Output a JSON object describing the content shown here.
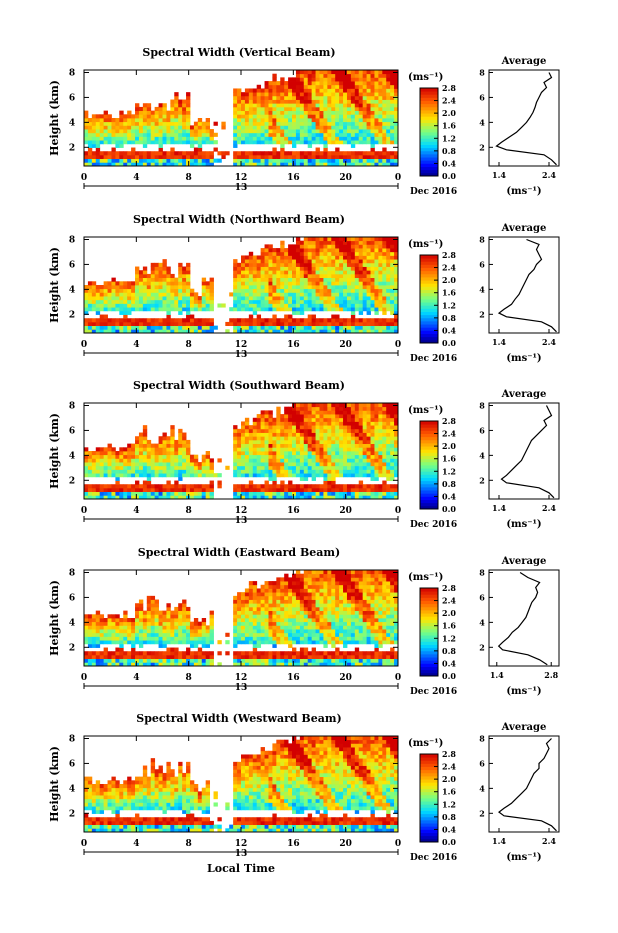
{
  "figure": {
    "xlabel": "Local Time",
    "ylabel": "Height (km)",
    "unit": "(ms⁻¹)",
    "date_label": "Dec 2016",
    "day_label": "13",
    "avg_title": "Average"
  },
  "chart_data": [
    {
      "type": "heatmap",
      "title": "Spectral Width (Vertical Beam)",
      "xlabel": "",
      "ylabel": "Height (km)",
      "x_ticks": [
        "0",
        "4",
        "8",
        "12",
        "16",
        "20",
        "0"
      ],
      "y_ticks": [
        "2",
        "4",
        "6",
        "8"
      ],
      "xlim": [
        0,
        24
      ],
      "ylim": [
        0.5,
        8.2
      ],
      "colorbar_ticks": [
        "0.0",
        "0.4",
        "0.8",
        "1.2",
        "1.6",
        "2.0",
        "2.4",
        "2.8"
      ],
      "colorbar_range": [
        0.0,
        2.8
      ],
      "average_profile": {
        "title": "Average",
        "xlabel": "(ms⁻¹)",
        "x_ticks": [
          "1.4",
          "2.4"
        ],
        "y_ticks": [
          "2",
          "4",
          "6",
          "8"
        ],
        "xlim": [
          1.2,
          2.6
        ],
        "ylim": [
          0.5,
          8.2
        ],
        "heights": [
          0.6,
          1.0,
          1.4,
          1.8,
          2.1,
          2.4,
          2.8,
          3.2,
          3.6,
          4.0,
          4.4,
          4.8,
          5.2,
          5.6,
          6.0,
          6.4,
          6.8,
          7.2,
          7.6,
          8.0
        ],
        "values": [
          2.55,
          2.45,
          2.3,
          1.55,
          1.35,
          1.45,
          1.6,
          1.75,
          1.85,
          1.95,
          2.02,
          2.08,
          2.12,
          2.15,
          2.2,
          2.25,
          2.35,
          2.3,
          2.45,
          2.4
        ]
      }
    },
    {
      "type": "heatmap",
      "title": "Spectral Width (Northward Beam)",
      "xlabel": "",
      "ylabel": "Height (km)",
      "x_ticks": [
        "0",
        "4",
        "8",
        "12",
        "16",
        "20",
        "0"
      ],
      "y_ticks": [
        "2",
        "4",
        "6",
        "8"
      ],
      "xlim": [
        0,
        24
      ],
      "ylim": [
        0.5,
        8.2
      ],
      "colorbar_ticks": [
        "0.0",
        "0.4",
        "0.8",
        "1.2",
        "1.6",
        "2.0",
        "2.4",
        "2.8"
      ],
      "colorbar_range": [
        0.0,
        2.8
      ],
      "average_profile": {
        "title": "Average",
        "xlabel": "(ms⁻¹)",
        "x_ticks": [
          "1.4",
          "2.4"
        ],
        "y_ticks": [
          "2",
          "4",
          "6",
          "8"
        ],
        "xlim": [
          1.2,
          2.6
        ],
        "ylim": [
          0.5,
          8.2
        ],
        "heights": [
          0.6,
          1.0,
          1.4,
          1.8,
          2.1,
          2.4,
          2.8,
          3.2,
          3.6,
          4.0,
          4.4,
          4.8,
          5.2,
          5.6,
          6.0,
          6.4,
          6.8,
          7.2,
          7.6,
          8.0
        ],
        "values": [
          2.55,
          2.45,
          2.25,
          1.55,
          1.4,
          1.5,
          1.65,
          1.72,
          1.8,
          1.85,
          1.9,
          1.95,
          2.0,
          2.1,
          2.15,
          2.25,
          2.2,
          2.15,
          2.2,
          1.95
        ]
      }
    },
    {
      "type": "heatmap",
      "title": "Spectral Width (Southward Beam)",
      "xlabel": "",
      "ylabel": "Height (km)",
      "x_ticks": [
        "0",
        "4",
        "8",
        "12",
        "16",
        "20",
        "0"
      ],
      "y_ticks": [
        "2",
        "4",
        "6",
        "8"
      ],
      "xlim": [
        0,
        24
      ],
      "ylim": [
        0.5,
        8.2
      ],
      "colorbar_ticks": [
        "0.0",
        "0.4",
        "0.8",
        "1.2",
        "1.6",
        "2.0",
        "2.4",
        "2.8"
      ],
      "colorbar_range": [
        0.0,
        2.8
      ],
      "average_profile": {
        "title": "Average",
        "xlabel": "(ms⁻¹)",
        "x_ticks": [
          "1.4",
          "2.4"
        ],
        "y_ticks": [
          "2",
          "4",
          "6",
          "8"
        ],
        "xlim": [
          1.2,
          2.6
        ],
        "ylim": [
          0.5,
          8.2
        ],
        "heights": [
          0.6,
          1.0,
          1.4,
          1.8,
          2.1,
          2.4,
          2.8,
          3.2,
          3.6,
          4.0,
          4.4,
          4.8,
          5.2,
          5.6,
          6.0,
          6.4,
          6.8,
          7.2,
          7.6,
          8.0
        ],
        "values": [
          2.5,
          2.4,
          2.2,
          1.55,
          1.45,
          1.55,
          1.65,
          1.75,
          1.85,
          1.9,
          1.95,
          2.0,
          2.05,
          2.15,
          2.25,
          2.35,
          2.3,
          2.45,
          2.4,
          2.35
        ]
      }
    },
    {
      "type": "heatmap",
      "title": "Spectral Width (Eastward Beam)",
      "xlabel": "",
      "ylabel": "Height (km)",
      "x_ticks": [
        "0",
        "4",
        "8",
        "12",
        "16",
        "20",
        "0"
      ],
      "y_ticks": [
        "2",
        "4",
        "6",
        "8"
      ],
      "xlim": [
        0,
        24
      ],
      "ylim": [
        0.5,
        8.2
      ],
      "colorbar_ticks": [
        "0.0",
        "0.4",
        "0.8",
        "1.2",
        "1.6",
        "2.0",
        "2.4",
        "2.8"
      ],
      "colorbar_range": [
        0.0,
        2.8
      ],
      "average_profile": {
        "title": "Average",
        "xlabel": "(ms⁻¹)",
        "x_ticks": [
          "1.4",
          "2.8"
        ],
        "y_ticks": [
          "2",
          "4",
          "6",
          "8"
        ],
        "xlim": [
          1.2,
          3.0
        ],
        "ylim": [
          0.5,
          8.2
        ],
        "heights": [
          0.6,
          1.0,
          1.4,
          1.8,
          2.1,
          2.4,
          2.8,
          3.2,
          3.6,
          4.0,
          4.4,
          4.8,
          5.2,
          5.6,
          6.0,
          6.4,
          6.8,
          7.2,
          7.6,
          8.0
        ],
        "values": [
          2.7,
          2.5,
          2.2,
          1.55,
          1.45,
          1.55,
          1.7,
          1.8,
          1.95,
          2.05,
          2.15,
          2.2,
          2.25,
          2.3,
          2.4,
          2.45,
          2.4,
          2.5,
          2.2,
          2.0
        ]
      }
    },
    {
      "type": "heatmap",
      "title": "Spectral Width (Westward Beam)",
      "xlabel": "Local Time",
      "ylabel": "Height (km)",
      "x_ticks": [
        "0",
        "4",
        "8",
        "12",
        "16",
        "20",
        "0"
      ],
      "y_ticks": [
        "2",
        "4",
        "6",
        "8"
      ],
      "xlim": [
        0,
        24
      ],
      "ylim": [
        0.5,
        8.2
      ],
      "colorbar_ticks": [
        "0.0",
        "0.4",
        "0.8",
        "1.2",
        "1.6",
        "2.0",
        "2.4",
        "2.8"
      ],
      "colorbar_range": [
        0.0,
        2.8
      ],
      "average_profile": {
        "title": "Average",
        "xlabel": "(ms⁻¹)",
        "x_ticks": [
          "1.4",
          "2.4"
        ],
        "y_ticks": [
          "2",
          "4",
          "6",
          "8"
        ],
        "xlim": [
          1.2,
          2.6
        ],
        "ylim": [
          0.5,
          8.2
        ],
        "heights": [
          0.6,
          1.0,
          1.4,
          1.8,
          2.1,
          2.4,
          2.8,
          3.2,
          3.6,
          4.0,
          4.4,
          4.8,
          5.2,
          5.6,
          6.0,
          6.4,
          6.8,
          7.2,
          7.6,
          8.0
        ],
        "values": [
          2.55,
          2.45,
          2.25,
          1.5,
          1.4,
          1.5,
          1.65,
          1.75,
          1.85,
          1.95,
          2.0,
          2.05,
          2.1,
          2.2,
          2.2,
          2.3,
          2.35,
          2.4,
          2.35,
          2.45
        ]
      }
    }
  ]
}
